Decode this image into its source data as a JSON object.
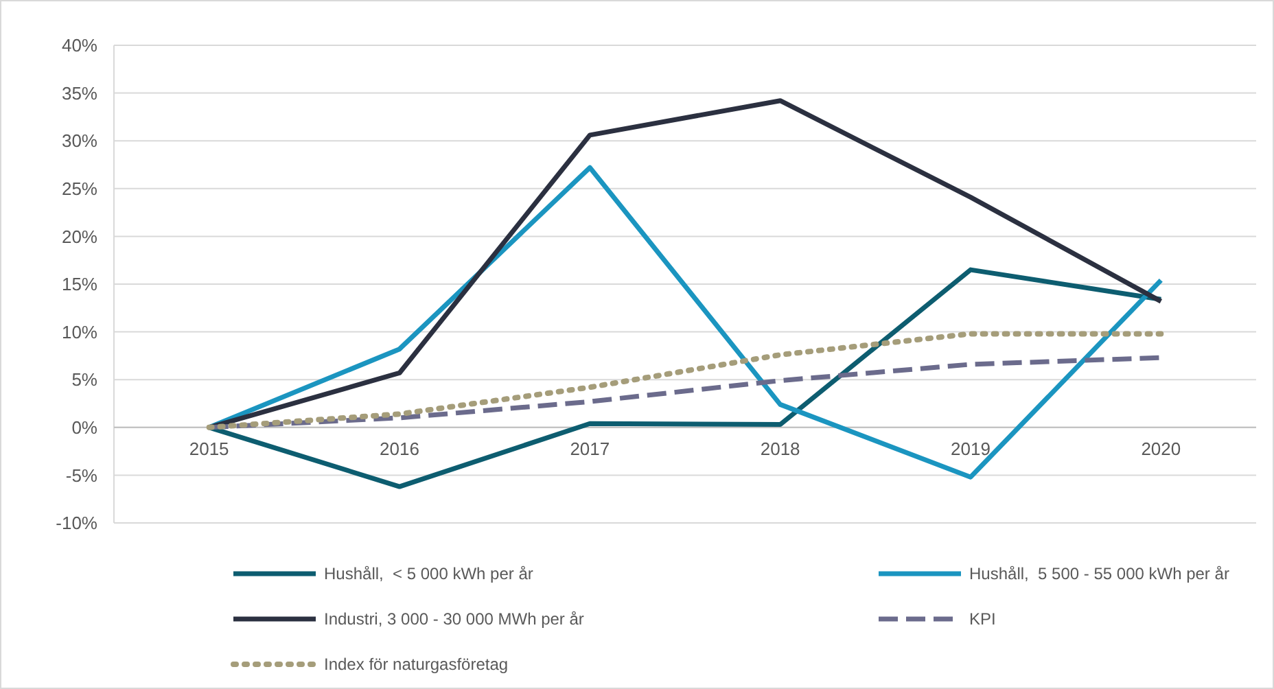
{
  "chart_data": {
    "type": "line",
    "categories": [
      "2015",
      "2016",
      "2017",
      "2018",
      "2019",
      "2020"
    ],
    "series": [
      {
        "name": "Hushåll,  < 5 000 kWh per år",
        "color": "#0d5d70",
        "values": [
          0,
          -6.2,
          0.4,
          0.3,
          16.5,
          13.4
        ]
      },
      {
        "name": "Hushåll,  5 500 - 55 000 kWh per år",
        "color": "#1b95c0",
        "values": [
          0,
          8.2,
          27.2,
          2.4,
          -5.2,
          15.4
        ]
      },
      {
        "name": "Industri, 3 000 - 30 000 MWh per år",
        "color": "#2b3040",
        "values": [
          0,
          5.7,
          30.6,
          34.2,
          24.1,
          13.2
        ]
      },
      {
        "name": "KPI",
        "color": "#6b6b8c",
        "values": [
          0,
          1.0,
          2.7,
          4.9,
          6.6,
          7.3
        ],
        "line_style": "dashed"
      },
      {
        "name": "Index för naturgasföretag",
        "color": "#a59d7a",
        "values": [
          0,
          1.4,
          4.2,
          7.6,
          9.8,
          9.8
        ],
        "line_style": "dotted"
      }
    ],
    "ylim": [
      -10,
      40
    ],
    "yticks": [
      {
        "value": -10,
        "label": "-10%"
      },
      {
        "value": -5,
        "label": "-5%"
      },
      {
        "value": 0,
        "label": "0%"
      },
      {
        "value": 5,
        "label": "5%"
      },
      {
        "value": 10,
        "label": "10%"
      },
      {
        "value": 15,
        "label": "15%"
      },
      {
        "value": 20,
        "label": "20%"
      },
      {
        "value": 25,
        "label": "25%"
      },
      {
        "value": 30,
        "label": "30%"
      },
      {
        "value": 35,
        "label": "35%"
      },
      {
        "value": 40,
        "label": "40%"
      }
    ],
    "grid": "y",
    "legend": "bottom",
    "marker": "none",
    "line_style": "solid"
  }
}
